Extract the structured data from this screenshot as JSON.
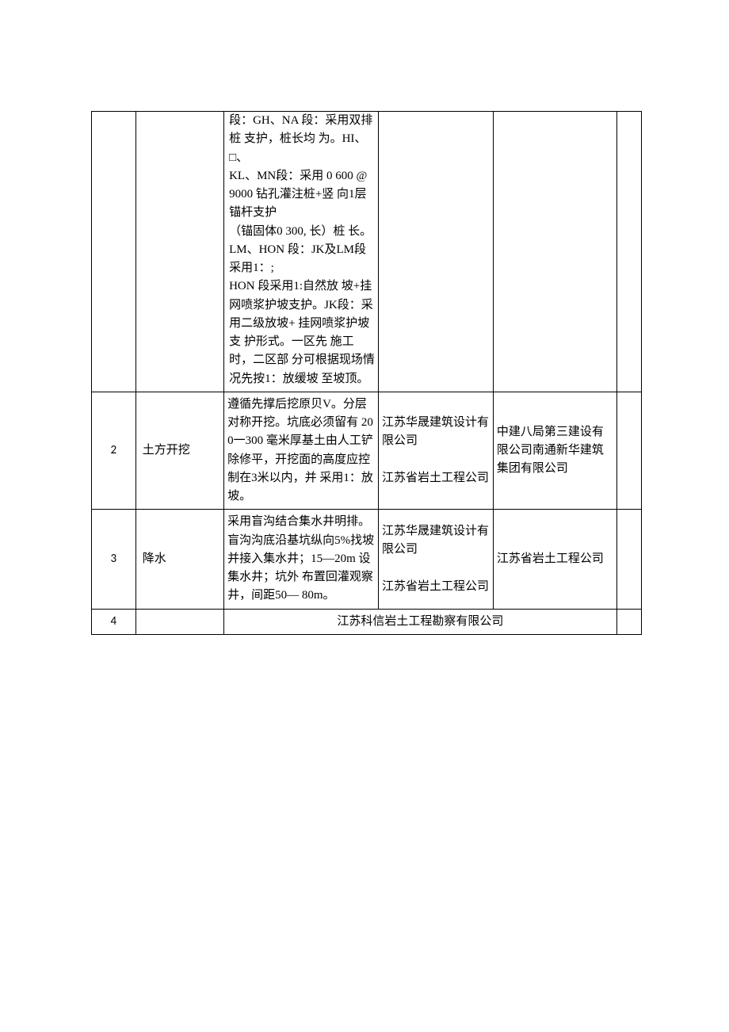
{
  "table": {
    "border_color": "#000000",
    "background_color": "#ffffff",
    "font_size": 15,
    "rows": [
      {
        "idx": "",
        "name": "",
        "desc": "段：GH、NA 段：采用双排桩 支护，桩长均 为。HI、□、\nKL、MN段：采用 0 600 @ 9000 钻孔灌注桩+竖 向1层锚杆支护\n（锚固体0 300, 长）桩 长。LM、HON 段：JK及LM段 采用1：;\nHON 段采用1:自然放 坡+挂网喷浆护坡支护。JK段：采用二级放坡+ 挂网喷浆护坡支 护形式。一区先 施工时，二区部 分可根据现场情 况先按1：放缓坡 至坡顶。",
        "unit1": "",
        "unit2": "",
        "last": ""
      },
      {
        "idx": "2",
        "name": "土方开挖",
        "desc": "遵循先撑后挖原贝V。分层对称开挖。坑底必须留有 200一300 毫米厚基土由人工铲除修平，开挖面的高度应控制在3米以内，并 采用1：放坡。",
        "unit1": "江苏华晟建筑设计有限公司\n\n江苏省岩土工程公司",
        "unit2": "中建八局第三建设有限公司南通新华建筑集团有限公司",
        "last": ""
      },
      {
        "idx": "3",
        "name": "降水",
        "desc": "采用盲沟结合集水井明排。盲沟沟底沿基坑纵向5%找坡并接入集水井；15—20m 设集水井；坑外 布置回灌观察 井，间距50— 80m。",
        "unit1": "江苏华晟建筑设计有限公司\n\n江苏省岩土工程公司",
        "unit2": "江苏省岩土工程公司",
        "last": ""
      },
      {
        "idx": "4",
        "name": "",
        "merged": "江苏科信岩土工程勘察有限公司",
        "last": ""
      }
    ]
  }
}
